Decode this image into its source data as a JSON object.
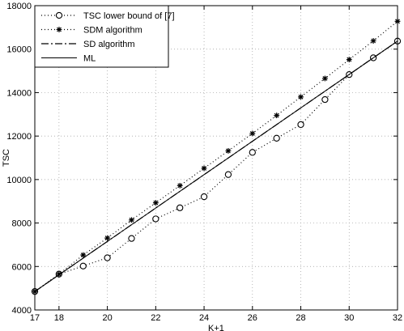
{
  "chart_data": {
    "type": "line",
    "xlabel": "K+1",
    "ylabel": "TSC",
    "xlim": [
      17,
      32
    ],
    "ylim": [
      4000,
      18000
    ],
    "xticks": [
      17,
      18,
      20,
      22,
      24,
      26,
      28,
      30,
      32
    ],
    "yticks": [
      4000,
      6000,
      8000,
      10000,
      12000,
      14000,
      16000,
      18000
    ],
    "grid": true,
    "legend_position": "top-left",
    "series": [
      {
        "name": "TSC lower bound of [7]",
        "style": "dotted",
        "marker": "circle",
        "color": "#000000",
        "x": [
          17,
          18,
          19,
          20,
          21,
          22,
          23,
          24,
          25,
          26,
          27,
          28,
          29,
          30,
          31,
          32
        ],
        "y": [
          4850,
          5650,
          6020,
          6400,
          7290,
          8190,
          8700,
          9210,
          10230,
          11250,
          11900,
          12530,
          13680,
          14830,
          15600,
          16370
        ]
      },
      {
        "name": "SDM algorithm",
        "style": "dotted",
        "marker": "star",
        "color": "#000000",
        "x": [
          17,
          18,
          19,
          20,
          21,
          22,
          23,
          24,
          25,
          26,
          27,
          28,
          29,
          30,
          31,
          32
        ],
        "y": [
          4850,
          5650,
          6530,
          7310,
          8140,
          8930,
          9720,
          10520,
          11320,
          12120,
          12950,
          13800,
          14650,
          15520,
          16380,
          17280
        ]
      },
      {
        "name": "SD algorithm",
        "style": "dashdot",
        "marker": "none",
        "color": "#000000",
        "x": [
          17,
          32
        ],
        "y": [
          4850,
          16370
        ]
      },
      {
        "name": "ML",
        "style": "solid",
        "marker": "none",
        "color": "#000000",
        "x": [
          17,
          32
        ],
        "y": [
          4850,
          16370
        ]
      }
    ]
  }
}
